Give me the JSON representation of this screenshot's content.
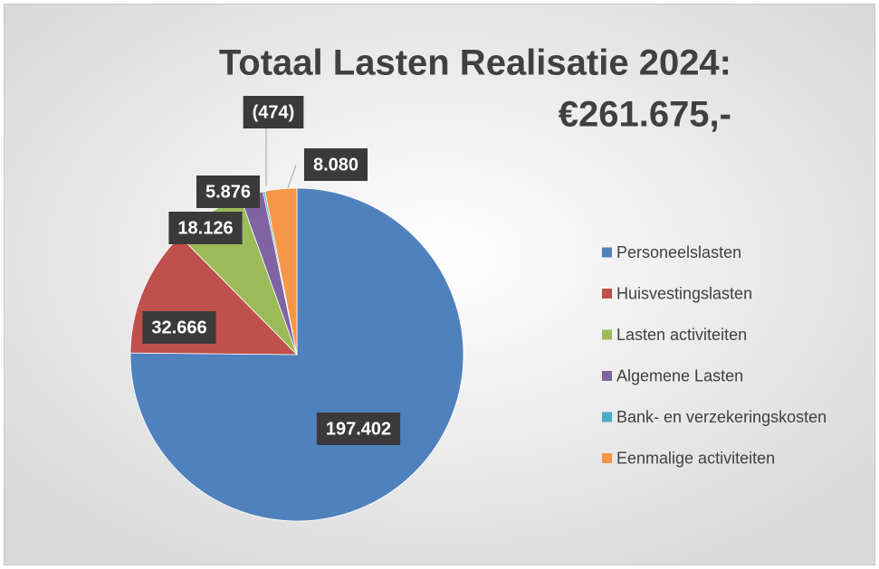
{
  "chart_data": {
    "type": "pie",
    "title_lines": [
      "Totaal Lasten Realisatie 2024:",
      "€261.675,-"
    ],
    "categories": [
      "Personeelslasten",
      "Huisvestingslasten",
      "Lasten activiteiten",
      "Algemene Lasten",
      "Bank- en verzekeringskosten",
      "Eenmalige activiteiten"
    ],
    "values": [
      197402,
      32666,
      18126,
      5876,
      -474,
      8080
    ],
    "value_labels": [
      "197.402",
      "32.666",
      "18.126",
      "5.876",
      "(474)",
      "8.080"
    ],
    "colors": [
      "#4f81bd",
      "#c0504d",
      "#9bbb59",
      "#8064a2",
      "#4bacc6",
      "#f79646"
    ],
    "legend": "right"
  }
}
